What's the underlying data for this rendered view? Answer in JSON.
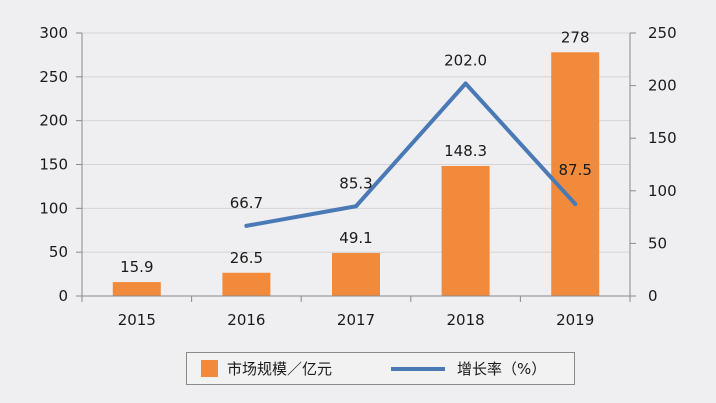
{
  "chart_data": {
    "type": "bar+line",
    "categories": [
      "2015",
      "2016",
      "2017",
      "2018",
      "2019"
    ],
    "series": [
      {
        "name": "市场规模／亿元",
        "type": "bar",
        "axis": "left",
        "color": "#f28a3c",
        "values": [
          15.9,
          26.5,
          49.1,
          148.3,
          278
        ],
        "labels": [
          "15.9",
          "26.5",
          "49.1",
          "148.3",
          "278"
        ]
      },
      {
        "name": "增长率（%）",
        "type": "line",
        "axis": "right",
        "color": "#4a7ab5",
        "values": [
          null,
          66.7,
          85.3,
          202.0,
          87.5
        ],
        "labels": [
          "",
          "66.7",
          "85.3",
          "202.0",
          "87.5"
        ]
      }
    ],
    "y_left": {
      "range": [
        0,
        300
      ],
      "ticks": [
        "0",
        "50",
        "100",
        "150",
        "200",
        "250",
        "300"
      ]
    },
    "y_right": {
      "range": [
        0,
        250
      ],
      "ticks": [
        "0",
        "50",
        "100",
        "150",
        "200",
        "250"
      ]
    },
    "grid": true,
    "legend_position": "bottom"
  },
  "legend": {
    "bar_label": "市场规模／亿元",
    "line_label": "增长率（%）"
  }
}
